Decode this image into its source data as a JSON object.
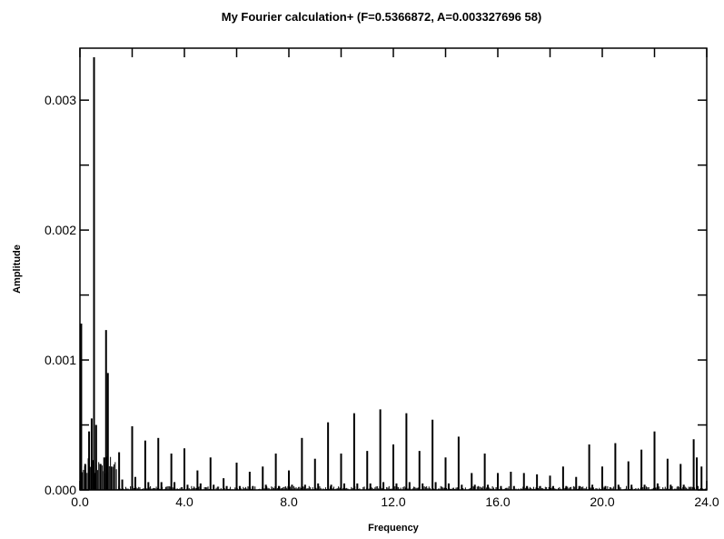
{
  "chart_data": {
    "type": "line",
    "title": "My Fourier calculation+ (F=0.5366872, A=0.003327696 58)",
    "xlabel": "Frequency",
    "ylabel": "Amplitude",
    "xlim": [
      0.0,
      24.0
    ],
    "ylim": [
      0.0,
      0.0034
    ],
    "x_ticks": [
      0.0,
      4.0,
      8.0,
      12.0,
      16.0,
      20.0,
      24.0
    ],
    "x_tick_labels": [
      "0.0",
      "4.0",
      "8.0",
      "12.0",
      "16.0",
      "20.0",
      "24.0"
    ],
    "y_ticks": [
      0.0,
      0.001,
      0.002,
      0.003
    ],
    "y_tick_labels": [
      "0.000",
      "0.001",
      "0.002",
      "0.003"
    ],
    "grid": false,
    "legend": "none",
    "series_color": "#000000",
    "peaks": {
      "x": [
        0.05,
        0.2,
        0.35,
        0.45,
        0.54,
        0.62,
        0.78,
        0.93,
        1.0,
        1.07,
        1.2,
        1.5,
        1.62,
        2.0,
        2.12,
        2.5,
        2.62,
        3.0,
        3.12,
        3.5,
        3.62,
        4.0,
        4.12,
        4.5,
        4.62,
        5.0,
        5.12,
        5.5,
        5.62,
        6.0,
        6.12,
        6.5,
        6.62,
        7.0,
        7.12,
        7.5,
        7.62,
        8.0,
        8.12,
        8.5,
        8.62,
        9.0,
        9.12,
        9.5,
        9.62,
        10.0,
        10.12,
        10.5,
        10.62,
        11.0,
        11.12,
        11.5,
        11.62,
        12.0,
        12.12,
        12.5,
        12.62,
        13.0,
        13.12,
        13.5,
        13.62,
        14.0,
        14.12,
        14.5,
        14.62,
        15.0,
        15.12,
        15.5,
        15.62,
        16.0,
        16.12,
        16.5,
        16.62,
        17.0,
        17.12,
        17.5,
        17.62,
        18.0,
        18.12,
        18.5,
        18.62,
        19.0,
        19.12,
        19.5,
        19.62,
        20.0,
        20.12,
        20.5,
        20.62,
        21.0,
        21.12,
        21.5,
        21.62,
        22.0,
        22.12,
        22.5,
        22.62,
        23.0,
        23.12,
        23.5,
        23.62,
        23.8
      ],
      "y": [
        0.00128,
        0.0002,
        0.00045,
        0.00055,
        0.00333,
        0.0005,
        0.0002,
        0.00025,
        0.00123,
        0.0009,
        0.00018,
        0.00029,
        8e-05,
        0.00049,
        0.0001,
        0.00038,
        6e-05,
        0.0004,
        6e-05,
        0.00028,
        6e-05,
        0.00032,
        4e-05,
        0.00015,
        5e-05,
        0.00025,
        4e-05,
        9e-05,
        3e-05,
        0.00021,
        3e-05,
        0.00014,
        3e-05,
        0.00018,
        4e-05,
        0.00028,
        3e-05,
        0.00015,
        4e-05,
        0.0004,
        4e-05,
        0.00024,
        5e-05,
        0.00052,
        4e-05,
        0.00028,
        5e-05,
        0.00059,
        5e-05,
        0.0003,
        5e-05,
        0.00062,
        6e-05,
        0.00035,
        5e-05,
        0.00059,
        6e-05,
        0.0003,
        5e-05,
        0.00054,
        6e-05,
        0.00025,
        5e-05,
        0.00041,
        4e-05,
        0.00013,
        4e-05,
        0.00028,
        4e-05,
        0.00013,
        3e-05,
        0.00014,
        3e-05,
        0.00013,
        3e-05,
        0.00012,
        3e-05,
        0.00011,
        3e-05,
        0.00018,
        3e-05,
        0.0001,
        3e-05,
        0.00035,
        4e-05,
        0.00018,
        3e-05,
        0.00036,
        4e-05,
        0.00022,
        4e-05,
        0.00031,
        4e-05,
        0.00045,
        5e-05,
        0.00024,
        4e-05,
        0.0002,
        4e-05,
        0.00039,
        0.00025,
        0.00018
      ]
    }
  }
}
